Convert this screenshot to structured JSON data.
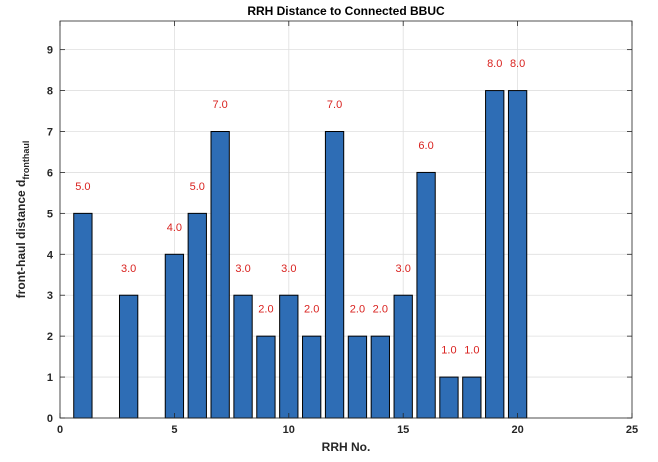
{
  "chart_data": {
    "type": "bar",
    "title": "RRH Distance to Connected BBUC",
    "xlabel": "RRH No.",
    "ylabel_main": "front-haul distance d",
    "ylabel_sub": "fronthaul",
    "xlim": [
      0,
      25
    ],
    "ylim": [
      0,
      9.7
    ],
    "x_ticks": [
      0,
      5,
      10,
      15,
      20,
      25
    ],
    "y_ticks": [
      0,
      1,
      2,
      3,
      4,
      5,
      6,
      7,
      8,
      9
    ],
    "grid": true,
    "x": [
      1,
      2,
      3,
      4,
      5,
      6,
      7,
      8,
      9,
      10,
      11,
      12,
      13,
      14,
      15,
      16,
      17,
      18,
      19,
      20
    ],
    "values": [
      5,
      0,
      3,
      0,
      4,
      5,
      7,
      3,
      2,
      3,
      2,
      7,
      2,
      2,
      3,
      6,
      1,
      1,
      8,
      8
    ],
    "data_labels": [
      "5.0",
      "",
      "3.0",
      "",
      "4.0",
      "5.0",
      "7.0",
      "3.0",
      "2.0",
      "3.0",
      "2.0",
      "7.0",
      "2.0",
      "2.0",
      "3.0",
      "6.0",
      "1.0",
      "1.0",
      "8.0",
      "8.0"
    ],
    "bar_color": "#2e6db5",
    "label_color": "#d9221f"
  }
}
